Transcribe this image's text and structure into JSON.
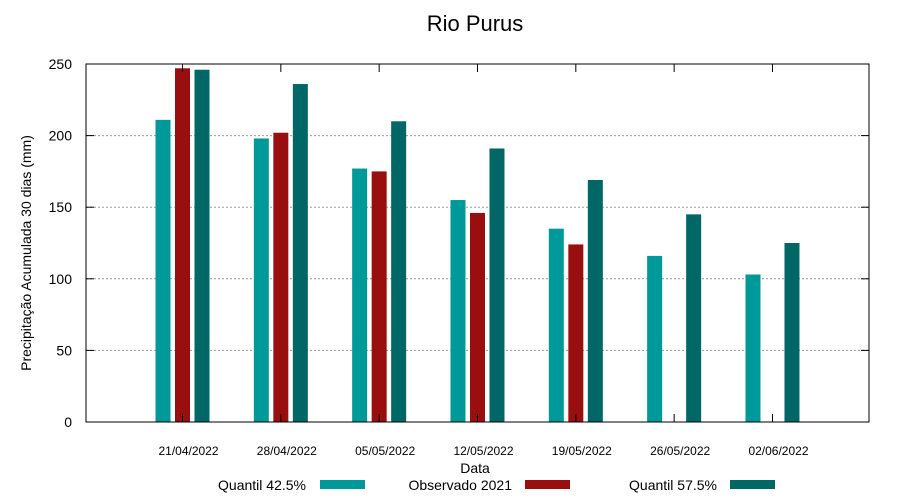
{
  "chart_data": {
    "type": "bar",
    "title": "Rio Purus",
    "xlabel": "Data",
    "ylabel": "Precipitação Acumulada 30 dias (mm)",
    "ylim": [
      0,
      250
    ],
    "yticks": [
      "0",
      "50",
      "100",
      "150",
      "200",
      "250"
    ],
    "grid": true,
    "legend_position": "bottom",
    "categories": [
      "21/04/2022",
      "28/04/2022",
      "05/05/2022",
      "12/05/2022",
      "19/05/2022",
      "26/05/2022",
      "02/06/2022"
    ],
    "series": [
      {
        "name": "Quantil 42.5%",
        "color": "#009999",
        "values": [
          211,
          198,
          177,
          155,
          135,
          116,
          103
        ]
      },
      {
        "name": "Observado 2021",
        "color": "#990f0f",
        "values": [
          247,
          202,
          175,
          146,
          124,
          null,
          null
        ]
      },
      {
        "name": "Quantil 57.5%",
        "color": "#006666",
        "values": [
          246,
          236,
          210,
          191,
          169,
          145,
          125
        ]
      }
    ]
  }
}
